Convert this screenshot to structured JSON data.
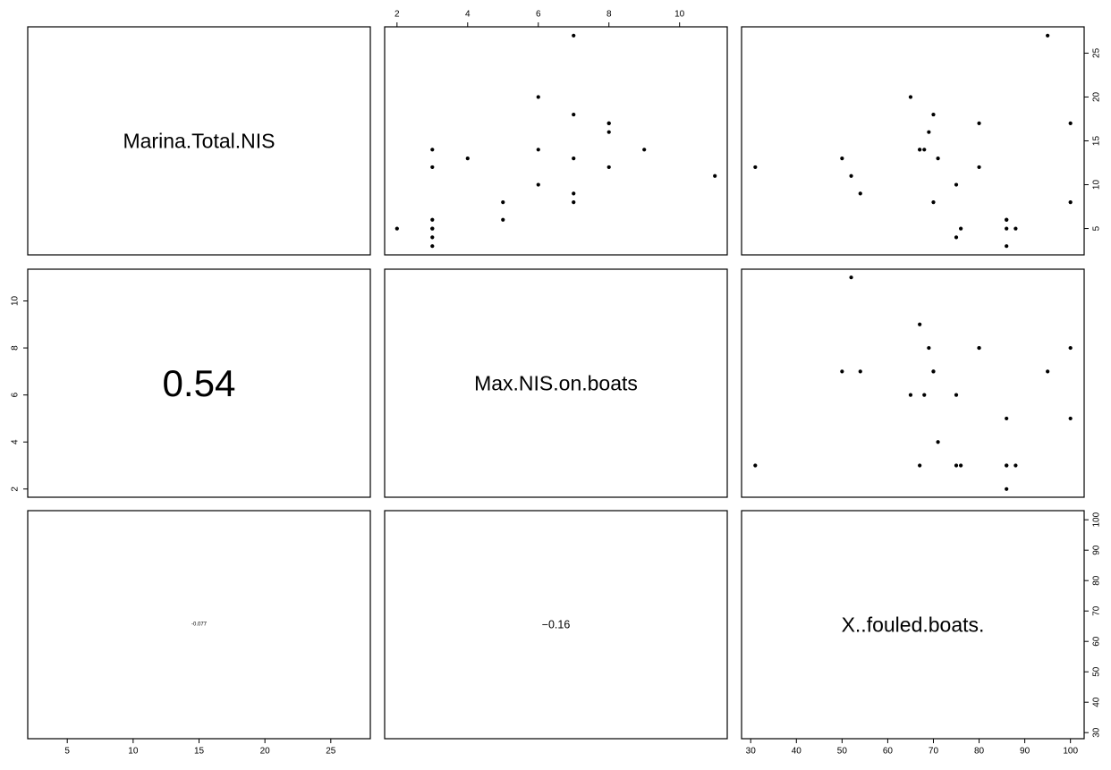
{
  "chart_data": {
    "type": "scatter",
    "variables": [
      "Marina.Total.NIS",
      "Max.NIS.on.boats",
      "X..fouled.boats."
    ],
    "correlations": [
      {
        "row": 1,
        "col": 0,
        "text": "0.54",
        "value": 0.54
      },
      {
        "row": 2,
        "col": 0,
        "text": "-0.077",
        "value": -0.077
      },
      {
        "row": 2,
        "col": 1,
        "text": "−0.16",
        "value": -0.16
      }
    ],
    "ranges": {
      "Marina.Total.NIS": [
        2.0,
        28.0
      ],
      "Max.NIS.on.boats": [
        1.65,
        11.35
      ],
      "X..fouled.boats.": [
        28.0,
        103.0
      ]
    },
    "ticks": {
      "Marina.Total.NIS": [
        5,
        10,
        15,
        20,
        25
      ],
      "Max.NIS.on.boats": [
        2,
        4,
        6,
        8,
        10
      ],
      "X..fouled.boats.": [
        30,
        40,
        50,
        60,
        70,
        80,
        90,
        100
      ]
    },
    "observations": [
      {
        "Marina.Total.NIS": 5,
        "Max.NIS.on.boats": 2,
        "X..fouled.boats.": 86
      },
      {
        "Marina.Total.NIS": 12,
        "Max.NIS.on.boats": 3,
        "X..fouled.boats.": 31
      },
      {
        "Marina.Total.NIS": 14,
        "Max.NIS.on.boats": 3,
        "X..fouled.boats.": 67
      },
      {
        "Marina.Total.NIS": 3,
        "Max.NIS.on.boats": 3,
        "X..fouled.boats.": 86
      },
      {
        "Marina.Total.NIS": 4,
        "Max.NIS.on.boats": 3,
        "X..fouled.boats.": 75
      },
      {
        "Marina.Total.NIS": 5,
        "Max.NIS.on.boats": 3,
        "X..fouled.boats.": 76
      },
      {
        "Marina.Total.NIS": 5,
        "Max.NIS.on.boats": 3,
        "X..fouled.boats.": 88
      },
      {
        "Marina.Total.NIS": 6,
        "Max.NIS.on.boats": 3,
        "X..fouled.boats.": 86
      },
      {
        "Marina.Total.NIS": 13,
        "Max.NIS.on.boats": 4,
        "X..fouled.boats.": 71
      },
      {
        "Marina.Total.NIS": 8,
        "Max.NIS.on.boats": 5,
        "X..fouled.boats.": 100
      },
      {
        "Marina.Total.NIS": 6,
        "Max.NIS.on.boats": 5,
        "X..fouled.boats.": 86
      },
      {
        "Marina.Total.NIS": 10,
        "Max.NIS.on.boats": 6,
        "X..fouled.boats.": 75
      },
      {
        "Marina.Total.NIS": 14,
        "Max.NIS.on.boats": 6,
        "X..fouled.boats.": 68
      },
      {
        "Marina.Total.NIS": 20,
        "Max.NIS.on.boats": 6,
        "X..fouled.boats.": 65
      },
      {
        "Marina.Total.NIS": 8,
        "Max.NIS.on.boats": 7,
        "X..fouled.boats.": 70
      },
      {
        "Marina.Total.NIS": 9,
        "Max.NIS.on.boats": 7,
        "X..fouled.boats.": 54
      },
      {
        "Marina.Total.NIS": 13,
        "Max.NIS.on.boats": 7,
        "X..fouled.boats.": 50
      },
      {
        "Marina.Total.NIS": 18,
        "Max.NIS.on.boats": 7,
        "X..fouled.boats.": 70
      },
      {
        "Marina.Total.NIS": 27,
        "Max.NIS.on.boats": 7,
        "X..fouled.boats.": 95
      },
      {
        "Marina.Total.NIS": 12,
        "Max.NIS.on.boats": 8,
        "X..fouled.boats.": 80
      },
      {
        "Marina.Total.NIS": 16,
        "Max.NIS.on.boats": 8,
        "X..fouled.boats.": 69
      },
      {
        "Marina.Total.NIS": 17,
        "Max.NIS.on.boats": 8,
        "X..fouled.boats.": 80
      },
      {
        "Marina.Total.NIS": 17,
        "Max.NIS.on.boats": 8,
        "X..fouled.boats.": 100
      },
      {
        "Marina.Total.NIS": 14,
        "Max.NIS.on.boats": 9,
        "X..fouled.boats.": 67
      },
      {
        "Marina.Total.NIS": 11,
        "Max.NIS.on.boats": 11,
        "X..fouled.boats.": 52
      }
    ]
  }
}
